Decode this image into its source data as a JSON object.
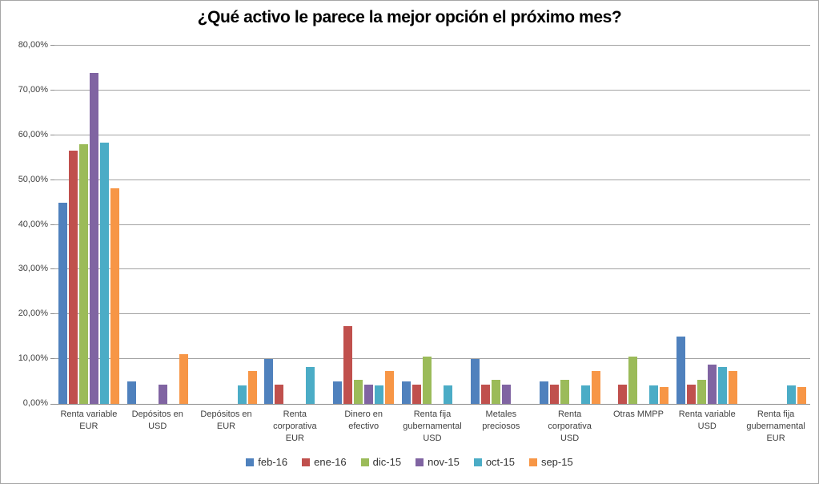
{
  "chart_data": {
    "type": "bar",
    "title": "¿Qué activo le parece la mejor opción el próximo mes?",
    "xlabel": "",
    "ylabel": "",
    "ylim": [
      0,
      80
    ],
    "grid": "horizontal",
    "legend_position": "bottom",
    "value_format": "percent",
    "yticks": [
      {
        "value": 0,
        "label": "0,00%"
      },
      {
        "value": 10,
        "label": "10,00%"
      },
      {
        "value": 20,
        "label": "20,00%"
      },
      {
        "value": 30,
        "label": "30,00%"
      },
      {
        "value": 40,
        "label": "40,00%"
      },
      {
        "value": 50,
        "label": "50,00%"
      },
      {
        "value": 60,
        "label": "60,00%"
      },
      {
        "value": 70,
        "label": "70,00%"
      },
      {
        "value": 80,
        "label": "80,00%"
      }
    ],
    "categories": [
      "Renta variable EUR",
      "Depósitos en USD",
      "Depósitos en EUR",
      "Renta corporativa EUR",
      "Dinero en efectivo",
      "Renta fija gubernamental USD",
      "Metales preciosos",
      "Renta corporativa USD",
      "Otras MMPP",
      "Renta variable USD",
      "Renta fija gubernamental EUR"
    ],
    "category_label_lines": [
      [
        "Renta variable",
        "EUR"
      ],
      [
        "Depósitos en",
        "USD"
      ],
      [
        "Depósitos en",
        "EUR"
      ],
      [
        "Renta",
        "corporativa",
        "EUR"
      ],
      [
        "Dinero en",
        "efectivo"
      ],
      [
        "Renta fija",
        "gubernamental",
        "USD"
      ],
      [
        "Metales",
        "preciosos"
      ],
      [
        "Renta",
        "corporativa",
        "USD"
      ],
      [
        "Otras MMPP"
      ],
      [
        "Renta variable",
        "USD"
      ],
      [
        "Renta fija",
        "gubernamental",
        "EUR"
      ]
    ],
    "series": [
      {
        "name": "feb-16",
        "color": "#4F81BD",
        "values": [
          45.0,
          5.0,
          0,
          10.0,
          5.0,
          5.0,
          10.0,
          5.0,
          0,
          15.0,
          0
        ]
      },
      {
        "name": "ene-16",
        "color": "#C0504D",
        "values": [
          56.5,
          0,
          0,
          4.3,
          17.4,
          4.3,
          4.3,
          4.3,
          4.3,
          4.3,
          0
        ]
      },
      {
        "name": "dic-15",
        "color": "#9BBB59",
        "values": [
          57.9,
          0,
          0,
          0,
          5.3,
          10.5,
          5.3,
          5.3,
          10.5,
          5.3,
          0
        ]
      },
      {
        "name": "nov-15",
        "color": "#8064A2",
        "values": [
          73.9,
          4.3,
          0,
          0,
          4.3,
          0,
          4.3,
          0,
          0,
          8.7,
          0
        ]
      },
      {
        "name": "oct-15",
        "color": "#4BACC6",
        "values": [
          58.3,
          0,
          4.2,
          8.3,
          4.2,
          4.2,
          0,
          4.2,
          4.2,
          8.3,
          4.2
        ]
      },
      {
        "name": "sep-15",
        "color": "#F79646",
        "values": [
          48.1,
          11.1,
          7.4,
          0,
          7.4,
          0,
          0,
          7.4,
          3.7,
          7.4,
          3.7
        ]
      }
    ],
    "colors": {
      "background": "#FFFFFF",
      "chart_border": "#A6A6A6",
      "gridline": "#A3A3A3",
      "axis_line": "#8C8C8C",
      "tick_label_text": "#404040",
      "category_label_text": "#3F3F3F",
      "legend_text": "#333333",
      "title_text": "#000000"
    }
  }
}
